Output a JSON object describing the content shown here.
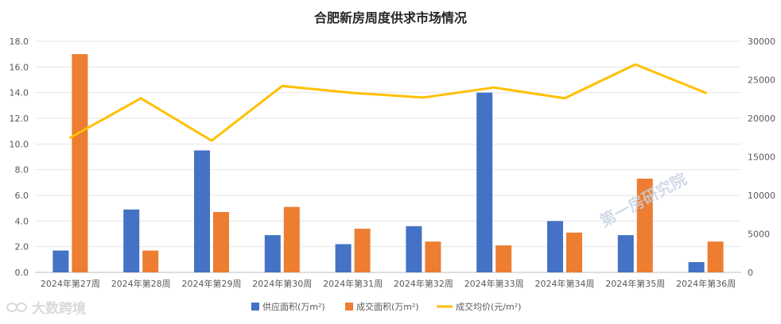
{
  "chart_data": {
    "type": "bar",
    "title": "合肥新房周度供求市场情况",
    "categories": [
      "2024年第27周",
      "2024年第28周",
      "2024年第29周",
      "2024年第30周",
      "2024年第31周",
      "2024年第32周",
      "2024年第33周",
      "2024年第34周",
      "2024年第35周",
      "2024年第36周"
    ],
    "series": [
      {
        "name": "供应面积(万m²)",
        "type": "bar",
        "axis": "left",
        "color": "#4472c4",
        "values": [
          1.7,
          4.9,
          9.5,
          2.9,
          2.2,
          3.6,
          14.0,
          4.0,
          2.9,
          0.8
        ]
      },
      {
        "name": "成交面积(万m²)",
        "type": "bar",
        "axis": "left",
        "color": "#ed7d31",
        "values": [
          17.0,
          1.7,
          4.7,
          5.1,
          3.4,
          2.4,
          2.1,
          3.1,
          7.3,
          2.4
        ]
      },
      {
        "name": "成交均价(元/m²)",
        "type": "line",
        "axis": "right",
        "color": "#ffc000",
        "values": [
          17500,
          22600,
          17100,
          24200,
          23300,
          22700,
          24000,
          22600,
          27000,
          23300
        ]
      }
    ],
    "y_left": {
      "min": 0,
      "max": 18,
      "step": 2,
      "ticks": [
        "0.0",
        "2.0",
        "4.0",
        "6.0",
        "8.0",
        "10.0",
        "12.0",
        "14.0",
        "16.0",
        "18.0"
      ]
    },
    "y_right": {
      "min": 0,
      "max": 30000,
      "step": 5000,
      "ticks": [
        "0",
        "5000",
        "10000",
        "15000",
        "20000",
        "25000",
        "30000"
      ]
    },
    "grid": true,
    "legend": "bottom"
  },
  "watermark": "第一房研究院",
  "logo": {
    "text": "大数跨境",
    "icon": "infinity-logo-icon"
  }
}
